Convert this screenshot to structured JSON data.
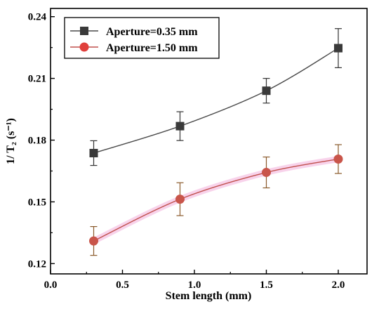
{
  "chart_data": {
    "type": "line",
    "x": [
      0.3,
      0.9,
      1.5,
      2.0
    ],
    "series": [
      {
        "name": "Aperture=0.35 mm",
        "values": [
          0.1737,
          0.1868,
          0.204,
          0.2247
        ],
        "errors": [
          0.006,
          0.007,
          0.006,
          0.0095
        ],
        "color": "#3a3a3a",
        "marker": "square",
        "fit_values": [
          0.1737,
          0.1868,
          0.204,
          0.2247
        ]
      },
      {
        "name": "Aperture=1.50 mm",
        "values": [
          0.131,
          0.1513,
          0.1643,
          0.1708
        ],
        "errors": [
          0.007,
          0.008,
          0.0075,
          0.007
        ],
        "color": "#e0403c",
        "marker": "circle",
        "fit_values": [
          0.131,
          0.1513,
          0.1643,
          0.1708
        ]
      }
    ],
    "xlabel": "Stem length (mm)",
    "ylabel": "1/ T₂ (s⁻¹)",
    "xlim": [
      0.0,
      2.2
    ],
    "ylim": [
      0.115,
      0.244
    ],
    "xticks": [
      "0.0",
      "0.5",
      "1.0",
      "1.5",
      "2.0"
    ],
    "yticks": [
      "0.12",
      "0.15",
      "0.18",
      "0.21",
      "0.24"
    ],
    "legend": "top-left",
    "grid": false
  }
}
